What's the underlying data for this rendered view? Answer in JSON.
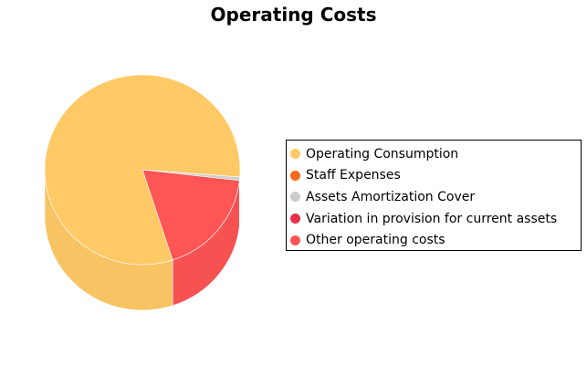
{
  "chart_data": {
    "type": "pie",
    "title": "Operating Costs",
    "legend_position": "right",
    "style": "3d",
    "slices": [
      {
        "label": "Operating Consumption",
        "value": 81.2,
        "color": "#FFC966"
      },
      {
        "label": "Staff Expenses",
        "value": 0.0,
        "color": "#F26A1A"
      },
      {
        "label": "Assets Amortization Cover",
        "value": 0.6,
        "color": "#CCCCCC"
      },
      {
        "label": "Variation in provision for current assets",
        "value": 0.0,
        "color": "#E8304A"
      },
      {
        "label": "Other operating costs",
        "value": 18.2,
        "color": "#FF5555"
      }
    ]
  }
}
